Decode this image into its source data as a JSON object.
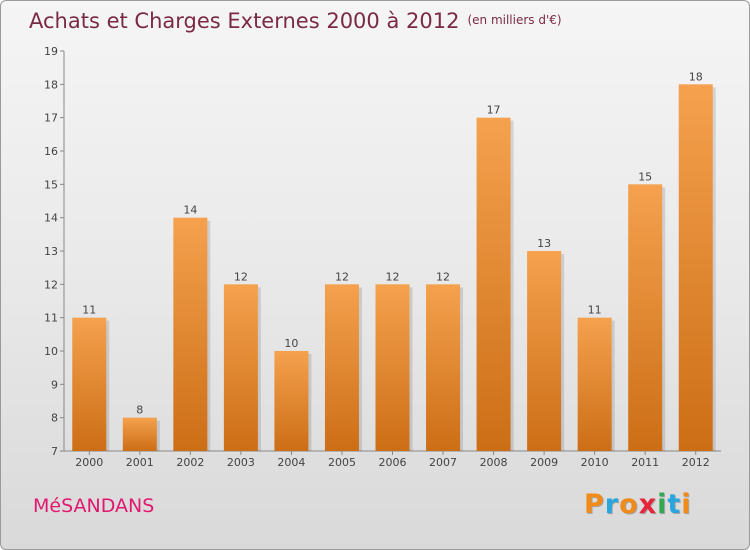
{
  "title": "Achats et Charges Externes 2000 à 2012",
  "unit_note": "(en milliers d'€)",
  "commune": "MéSANDANS",
  "brand": {
    "letters": [
      "P",
      "r",
      "o",
      "x",
      "i",
      "t",
      "i"
    ],
    "colors": [
      "#f08a1a",
      "#2aa6de",
      "#f08a1a",
      "#e6253a",
      "#33a853",
      "#2aa6de",
      "#f08a1a"
    ]
  },
  "colors": {
    "bar_top": "#f5a14e",
    "bar_bottom": "#cc6e16",
    "title": "#7b2a44",
    "commune": "#e0186f",
    "axis": "#888888",
    "text": "#444444"
  },
  "chart_data": {
    "type": "bar",
    "title": "Achats et Charges Externes 2000 à 2012",
    "subtitle": "(en milliers d'€)",
    "xlabel": "",
    "ylabel": "",
    "categories": [
      "2000",
      "2001",
      "2002",
      "2003",
      "2004",
      "2005",
      "2006",
      "2007",
      "2008",
      "2009",
      "2010",
      "2011",
      "2012"
    ],
    "values": [
      11,
      8,
      14,
      12,
      10,
      12,
      12,
      12,
      17,
      13,
      11,
      15,
      18
    ],
    "ylim": [
      7,
      19
    ],
    "yticks": [
      7,
      8,
      9,
      10,
      11,
      12,
      13,
      14,
      15,
      16,
      17,
      18,
      19
    ],
    "grid": false,
    "data_labels": true
  }
}
